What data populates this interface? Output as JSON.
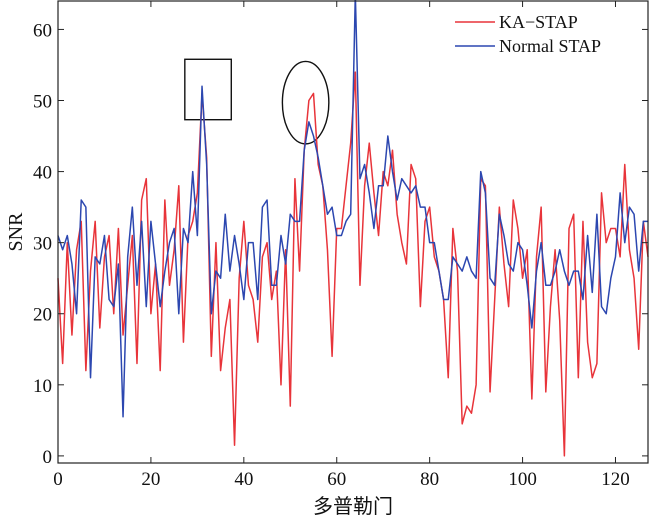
{
  "chart_data": {
    "type": "line",
    "xlabel": "多普勒门",
    "ylabel": "SNR",
    "xlim": [
      0,
      127
    ],
    "ylim": [
      -1,
      64
    ],
    "xticks": [
      0,
      20,
      40,
      60,
      80,
      100,
      120
    ],
    "yticks": [
      0,
      10,
      20,
      30,
      40,
      50,
      60
    ],
    "legend_position": "top-right",
    "x": [
      0,
      1,
      2,
      3,
      4,
      5,
      6,
      7,
      8,
      9,
      10,
      11,
      12,
      13,
      14,
      15,
      16,
      17,
      18,
      19,
      20,
      21,
      22,
      23,
      24,
      25,
      26,
      27,
      28,
      29,
      30,
      31,
      32,
      33,
      34,
      35,
      36,
      37,
      38,
      39,
      40,
      41,
      42,
      43,
      44,
      45,
      46,
      47,
      48,
      49,
      50,
      51,
      52,
      53,
      54,
      55,
      56,
      57,
      58,
      59,
      60,
      61,
      62,
      63,
      64,
      65,
      66,
      67,
      68,
      69,
      70,
      71,
      72,
      73,
      74,
      75,
      76,
      77,
      78,
      79,
      80,
      81,
      82,
      83,
      84,
      85,
      86,
      87,
      88,
      89,
      90,
      91,
      92,
      93,
      94,
      95,
      96,
      97,
      98,
      99,
      100,
      101,
      102,
      103,
      104,
      105,
      106,
      107,
      108,
      109,
      110,
      111,
      112,
      113,
      114,
      115,
      116,
      117,
      118,
      119,
      120,
      121,
      122,
      123,
      124,
      125,
      126,
      127
    ],
    "series": [
      {
        "name": "KA−STAP",
        "color": "#e8343a",
        "values": [
          25,
          13,
          30,
          17,
          29,
          33,
          12,
          26,
          33,
          18,
          28,
          31,
          20,
          32,
          17,
          24,
          31,
          13,
          36,
          39,
          20,
          27,
          12,
          36,
          24,
          29,
          38,
          16,
          31,
          33,
          37,
          51,
          42,
          14,
          30,
          12,
          18,
          22,
          1.5,
          25,
          33,
          24,
          22,
          16,
          28,
          30,
          22,
          26,
          10,
          29,
          7,
          39,
          26,
          43,
          50,
          51,
          41,
          38,
          29,
          14,
          32,
          32,
          38,
          44,
          54,
          24,
          38,
          44,
          37,
          31,
          40,
          38,
          43,
          34,
          30,
          27,
          41,
          39,
          21,
          33,
          35,
          28,
          26,
          22,
          11,
          32,
          26,
          4.5,
          7,
          6,
          10,
          39,
          38,
          9,
          22,
          35,
          27,
          21,
          36,
          32,
          25,
          29,
          8,
          28,
          35,
          9,
          21,
          29,
          19,
          0,
          32,
          34,
          11,
          33,
          16,
          11,
          13,
          37,
          30,
          32,
          32,
          28,
          41,
          29,
          25,
          15,
          33,
          28
        ]
      },
      {
        "name": "Normal STAP",
        "color": "#2c47b0",
        "values": [
          31,
          29,
          31,
          27,
          20,
          36,
          35,
          11,
          28,
          27,
          31,
          22,
          21,
          27,
          5.5,
          28,
          35,
          24,
          33,
          21,
          33,
          27,
          21,
          26,
          30,
          32,
          20,
          32,
          30,
          40,
          31,
          52,
          41,
          20,
          26,
          25,
          34,
          26,
          31,
          27,
          22,
          30,
          30,
          22,
          35,
          36,
          24,
          24,
          31,
          27,
          34,
          33,
          33,
          43,
          47,
          45,
          42,
          38,
          34,
          35,
          31,
          31,
          33,
          34,
          65,
          39,
          41,
          37,
          32,
          38,
          38,
          45,
          40,
          36,
          39,
          38,
          37,
          38,
          35,
          35,
          30,
          30,
          26,
          22,
          22,
          28,
          27,
          26,
          28,
          26,
          25,
          40,
          37,
          25,
          24,
          34,
          31,
          27,
          26,
          30,
          29,
          24,
          18,
          26,
          30,
          24,
          24,
          26,
          29,
          26,
          24,
          26,
          26,
          22,
          31,
          23,
          34,
          21,
          20,
          25,
          28,
          37,
          30,
          35,
          34,
          26,
          33,
          33
        ]
      }
    ],
    "annotations": [
      {
        "shape": "rectangle",
        "x_range": [
          27.3,
          37.3
        ],
        "y_range": [
          47.3,
          55.8
        ]
      },
      {
        "shape": "ellipse",
        "center": [
          53.3,
          49.7
        ],
        "radius_x": 5,
        "radius_y": 5.8
      }
    ]
  }
}
